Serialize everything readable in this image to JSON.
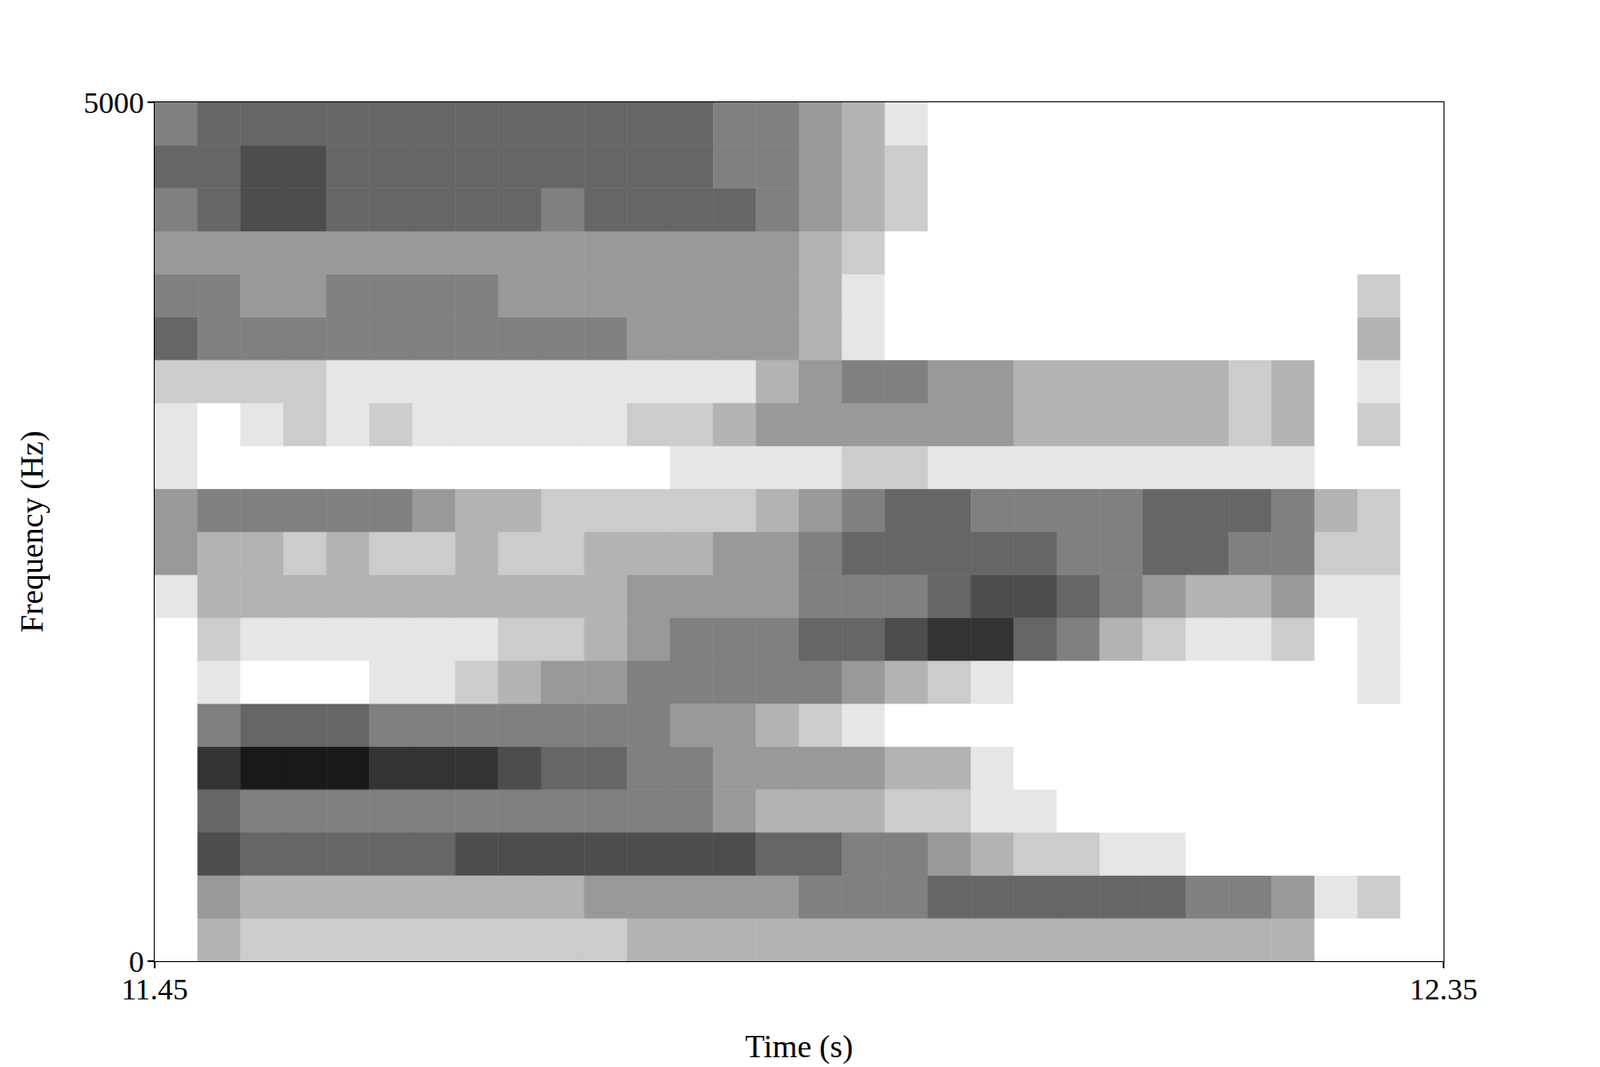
{
  "chart_data": {
    "type": "spectrogram",
    "x_label": "Time (s)",
    "y_label": "Frequency (Hz)",
    "xlim": [
      11.45,
      12.35
    ],
    "xticks": [
      11.45,
      12.35
    ],
    "ylim": [
      0,
      5000
    ],
    "yticks": [
      0,
      5000
    ],
    "grid": false,
    "zlim": [
      0,
      10
    ],
    "x_edges": [
      11.45,
      11.48,
      11.51,
      11.54,
      11.57,
      11.6,
      11.63,
      11.66,
      11.69,
      11.72,
      11.75,
      11.78,
      11.81,
      11.84,
      11.87,
      11.9,
      11.93,
      11.96,
      11.99,
      12.02,
      12.05,
      12.08,
      12.11,
      12.14,
      12.17,
      12.2,
      12.23,
      12.26,
      12.29,
      12.32,
      12.35
    ],
    "y_edges": [
      0,
      250,
      500,
      750,
      1000,
      1250,
      1500,
      1750,
      2000,
      2250,
      2500,
      2750,
      3000,
      3250,
      3500,
      3750,
      4000,
      4250,
      4500,
      4750,
      5000
    ],
    "z": [
      [
        0,
        3,
        2,
        2,
        2,
        2,
        2,
        2,
        2,
        2,
        2,
        3,
        3,
        3,
        3,
        3,
        3,
        3,
        3,
        3,
        3,
        3,
        3,
        3,
        3,
        3,
        3,
        0,
        0,
        0
      ],
      [
        0,
        4,
        3,
        3,
        3,
        3,
        3,
        3,
        3,
        3,
        4,
        4,
        4,
        4,
        4,
        5,
        5,
        5,
        6,
        6,
        6,
        6,
        6,
        6,
        5,
        5,
        4,
        1,
        2,
        0
      ],
      [
        0,
        7,
        6,
        6,
        6,
        6,
        6,
        7,
        7,
        7,
        7,
        7,
        7,
        7,
        6,
        6,
        5,
        5,
        4,
        3,
        2,
        2,
        1,
        1,
        0,
        0,
        0,
        0,
        0,
        0
      ],
      [
        0,
        6,
        5,
        5,
        5,
        5,
        5,
        5,
        5,
        5,
        5,
        5,
        5,
        4,
        3,
        3,
        3,
        2,
        2,
        1,
        1,
        0,
        0,
        0,
        0,
        0,
        0,
        0,
        0,
        0
      ],
      [
        0,
        8,
        9,
        9,
        9,
        8,
        8,
        8,
        7,
        6,
        6,
        5,
        5,
        4,
        4,
        4,
        4,
        3,
        3,
        1,
        0,
        0,
        0,
        0,
        0,
        0,
        0,
        0,
        0,
        0
      ],
      [
        0,
        5,
        6,
        6,
        6,
        5,
        5,
        5,
        5,
        5,
        5,
        5,
        4,
        4,
        3,
        2,
        1,
        0,
        0,
        0,
        0,
        0,
        0,
        0,
        0,
        0,
        0,
        0,
        0,
        0
      ],
      [
        0,
        1,
        0,
        0,
        0,
        1,
        1,
        2,
        3,
        4,
        4,
        5,
        5,
        5,
        5,
        5,
        4,
        3,
        2,
        1,
        0,
        0,
        0,
        0,
        0,
        0,
        0,
        0,
        1,
        0
      ],
      [
        0,
        2,
        1,
        1,
        1,
        1,
        1,
        1,
        2,
        2,
        3,
        4,
        5,
        5,
        5,
        6,
        6,
        7,
        8,
        8,
        6,
        5,
        3,
        2,
        1,
        1,
        2,
        0,
        1,
        0
      ],
      [
        1,
        3,
        3,
        3,
        3,
        3,
        3,
        3,
        3,
        3,
        3,
        4,
        4,
        4,
        4,
        5,
        5,
        5,
        6,
        7,
        7,
        6,
        5,
        4,
        3,
        3,
        4,
        1,
        1,
        0
      ],
      [
        4,
        3,
        3,
        2,
        3,
        2,
        2,
        3,
        2,
        2,
        3,
        3,
        3,
        4,
        4,
        5,
        6,
        6,
        6,
        6,
        6,
        5,
        5,
        6,
        6,
        5,
        5,
        2,
        2,
        0
      ],
      [
        4,
        5,
        5,
        5,
        5,
        5,
        4,
        3,
        3,
        2,
        2,
        2,
        2,
        2,
        3,
        4,
        5,
        6,
        6,
        5,
        5,
        5,
        5,
        6,
        6,
        6,
        5,
        3,
        2,
        0
      ],
      [
        1,
        0,
        0,
        0,
        0,
        0,
        0,
        0,
        0,
        0,
        0,
        0,
        1,
        1,
        1,
        1,
        2,
        2,
        1,
        1,
        1,
        1,
        1,
        1,
        1,
        1,
        1,
        0,
        0,
        0
      ],
      [
        1,
        0,
        1,
        2,
        1,
        2,
        1,
        1,
        1,
        1,
        1,
        2,
        2,
        3,
        4,
        4,
        4,
        4,
        4,
        4,
        3,
        3,
        3,
        3,
        3,
        2,
        3,
        0,
        2,
        0
      ],
      [
        2,
        2,
        2,
        2,
        1,
        1,
        1,
        1,
        1,
        1,
        1,
        1,
        1,
        1,
        3,
        4,
        5,
        5,
        4,
        4,
        3,
        3,
        3,
        3,
        3,
        2,
        3,
        0,
        1,
        0
      ],
      [
        6,
        5,
        5,
        5,
        5,
        5,
        5,
        5,
        5,
        5,
        5,
        4,
        4,
        4,
        4,
        3,
        1,
        0,
        0,
        0,
        0,
        0,
        0,
        0,
        0,
        0,
        0,
        0,
        3,
        0
      ],
      [
        5,
        5,
        4,
        4,
        5,
        5,
        5,
        5,
        4,
        4,
        4,
        4,
        4,
        4,
        4,
        3,
        1,
        0,
        0,
        0,
        0,
        0,
        0,
        0,
        0,
        0,
        0,
        0,
        2,
        0
      ],
      [
        4,
        4,
        4,
        4,
        4,
        4,
        4,
        4,
        4,
        4,
        4,
        4,
        4,
        4,
        4,
        3,
        2,
        0,
        0,
        0,
        0,
        0,
        0,
        0,
        0,
        0,
        0,
        0,
        0,
        0
      ],
      [
        5,
        6,
        7,
        7,
        6,
        6,
        6,
        6,
        6,
        5,
        6,
        6,
        6,
        6,
        5,
        4,
        3,
        2,
        0,
        0,
        0,
        0,
        0,
        0,
        0,
        0,
        0,
        0,
        0,
        0
      ],
      [
        6,
        6,
        7,
        7,
        6,
        6,
        6,
        6,
        6,
        6,
        6,
        6,
        6,
        5,
        5,
        4,
        3,
        2,
        0,
        0,
        0,
        0,
        0,
        0,
        0,
        0,
        0,
        0,
        0,
        0
      ],
      [
        5,
        6,
        6,
        6,
        6,
        6,
        6,
        6,
        6,
        6,
        6,
        6,
        6,
        5,
        5,
        4,
        3,
        1,
        0,
        0,
        0,
        0,
        0,
        0,
        0,
        0,
        0,
        0,
        0,
        0
      ]
    ]
  }
}
